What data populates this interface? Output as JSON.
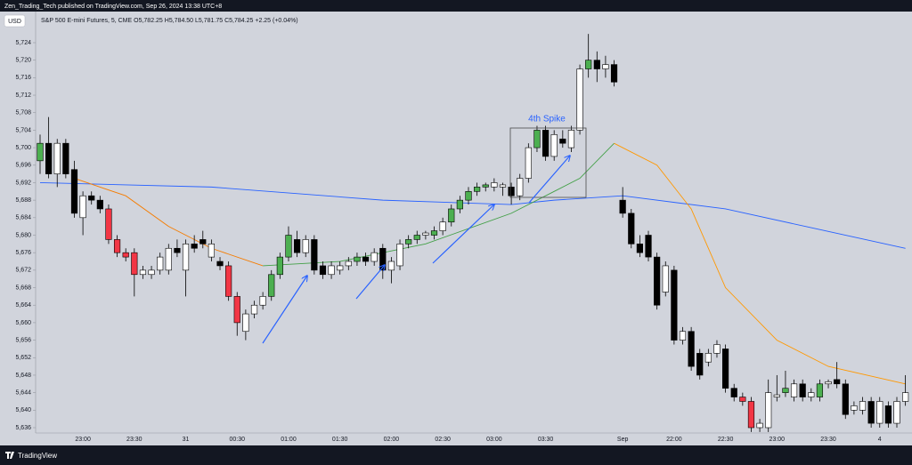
{
  "header": {
    "publisher": "Zen_Trading_Tech published on TradingView.com, Sep 26, 2024 13:38 UTC+8"
  },
  "chart_data": {
    "type": "candlestick",
    "currency": "USD",
    "symbol_line": "S&P 500 E-mini Futures, 5, CME  O5,782.25 H5,784.50 L5,781.75 C5,784.25 +2.25 (+0.04%)",
    "annotation": "4th Spike",
    "annotation_color": "#2962ff",
    "categories": [
      null,
      null,
      null,
      null,
      null,
      "23:00",
      null,
      null,
      null,
      null,
      null,
      "23:30",
      null,
      null,
      null,
      null,
      null,
      "31",
      null,
      null,
      null,
      null,
      null,
      "00:30",
      null,
      null,
      null,
      null,
      null,
      "01:00",
      null,
      null,
      null,
      null,
      null,
      "01:30",
      null,
      null,
      null,
      null,
      null,
      "02:00",
      null,
      null,
      null,
      null,
      null,
      "02:30",
      null,
      null,
      null,
      null,
      null,
      "03:00",
      null,
      null,
      null,
      null,
      null,
      "03:30",
      null,
      null,
      null,
      null,
      null,
      null,
      null,
      null,
      "Sep",
      null,
      null,
      null,
      null,
      null,
      "22:00",
      null,
      null,
      null,
      null,
      null,
      "22:30",
      null,
      null,
      null,
      null,
      null,
      "23:00",
      null,
      null,
      null,
      null,
      null,
      "23:30",
      null,
      null,
      null,
      null,
      null,
      "4",
      null,
      null,
      null
    ],
    "open": [
      5697,
      5701,
      5694,
      5701,
      5695,
      5684,
      5689,
      5688,
      5686,
      5679,
      5676,
      5676,
      5671,
      5671,
      5672,
      5672,
      5677,
      5672,
      5678,
      5679,
      5675,
      5674,
      5673,
      5666,
      5658,
      5662,
      5664,
      5666,
      5671,
      5675,
      5679,
      5676,
      5679,
      5673,
      5671,
      5672,
      5673,
      5674,
      5675,
      5674,
      5677,
      5672,
      5673,
      5678,
      5679,
      5680,
      5680,
      5681,
      5683,
      5686,
      5688,
      5690,
      5691,
      5691,
      5691,
      5691,
      5689,
      5693,
      5700,
      5704,
      5698,
      5702,
      5700,
      5704,
      5718,
      5720,
      5718,
      5719,
      5688,
      5685,
      5678,
      5680,
      5675,
      5667,
      5672,
      5656,
      5658,
      5653,
      5651,
      5653,
      5654,
      5645,
      5643,
      5642,
      5636,
      5636,
      5643,
      5644,
      5643,
      5646,
      5643,
      5643,
      5646,
      5647,
      5646,
      5640,
      5640,
      5642,
      5637,
      5641,
      5637,
      5642
    ],
    "high": [
      5703,
      5707,
      5702,
      5702,
      5697,
      5690,
      5690,
      5689,
      5687,
      5680,
      5677,
      5677,
      5673,
      5673,
      5676,
      5678,
      5679,
      5679,
      5680,
      5681,
      5679,
      5675,
      5674,
      5667,
      5663,
      5665,
      5667,
      5672,
      5676,
      5682,
      5681,
      5680,
      5680,
      5674,
      5674,
      5674,
      5675,
      5676,
      5676,
      5677,
      5678,
      5675,
      5679,
      5680,
      5681,
      5681,
      5682,
      5684,
      5687,
      5689,
      5691,
      5692,
      5692,
      5693,
      5692,
      5692,
      5694,
      5701,
      5705,
      5705,
      5704,
      5704,
      5705,
      5719,
      5726,
      5722,
      5721,
      5720,
      5691,
      5686,
      5680,
      5681,
      5676,
      5674,
      5673,
      5659,
      5659,
      5654,
      5654,
      5656,
      5655,
      5646,
      5644,
      5643,
      5638,
      5647,
      5648,
      5649,
      5647,
      5647,
      5645,
      5647,
      5647,
      5651,
      5647,
      5642,
      5643,
      5643,
      5643,
      5642,
      5643,
      5648
    ],
    "low": [
      5694,
      5693,
      5691,
      5693,
      5684,
      5680,
      5687,
      5685,
      5678,
      5675,
      5674,
      5666,
      5670,
      5670,
      5671,
      5671,
      5675,
      5666,
      5676,
      5677,
      5674,
      5672,
      5665,
      5657,
      5656,
      5661,
      5663,
      5665,
      5670,
      5674,
      5675,
      5675,
      5671,
      5670,
      5670,
      5671,
      5672,
      5673,
      5673,
      5673,
      5670,
      5669,
      5672,
      5677,
      5678,
      5679,
      5679,
      5680,
      5682,
      5685,
      5687,
      5689,
      5690,
      5690,
      5689,
      5687,
      5688,
      5692,
      5699,
      5697,
      5697,
      5700,
      5699,
      5703,
      5716,
      5715,
      5716,
      5714,
      5684,
      5677,
      5675,
      5674,
      5663,
      5666,
      5655,
      5655,
      5649,
      5647,
      5650,
      5652,
      5644,
      5642,
      5641,
      5635,
      5635,
      5635,
      5642,
      5643,
      5642,
      5642,
      5642,
      5642,
      5645,
      5645,
      5638,
      5639,
      5639,
      5636,
      5636,
      5636,
      5636,
      5641
    ],
    "close": [
      5701,
      5694,
      5701,
      5694,
      5685,
      5689,
      5688,
      5686,
      5679,
      5676,
      5675,
      5671,
      5672,
      5672,
      5675,
      5677,
      5676,
      5678,
      5677,
      5678,
      5678,
      5673,
      5666,
      5660,
      5662,
      5664,
      5666,
      5671,
      5675,
      5680,
      5676,
      5679,
      5672,
      5671,
      5673,
      5673,
      5674,
      5675,
      5674,
      5676,
      5672,
      5674,
      5678,
      5679,
      5680,
      5680.5,
      5681,
      5683,
      5686,
      5688,
      5690,
      5691,
      5691.5,
      5692,
      5691.5,
      5689,
      5693,
      5700,
      5704,
      5698,
      5703,
      5701,
      5704,
      5718,
      5720,
      5718,
      5719,
      5715,
      5685,
      5678,
      5676,
      5675,
      5664,
      5673,
      5656,
      5658,
      5650,
      5648,
      5653,
      5655,
      5645,
      5643,
      5642,
      5636,
      5637,
      5644,
      5643.5,
      5645,
      5646,
      5643,
      5644,
      5646,
      5646.5,
      5646,
      5639,
      5641,
      5642,
      5637,
      5642,
      5637,
      5642,
      5644
    ],
    "candle_colors": [
      "#4caf50",
      "#000000",
      "#ffffff",
      "#000000",
      "#000000",
      "#ffffff",
      "#000000",
      "#000000",
      "#f23645",
      "#f23645",
      "#f23645",
      "#f23645",
      "#ffffff",
      "#ffffff",
      "#ffffff",
      "#ffffff",
      "#000000",
      "#ffffff",
      "#000000",
      "#000000",
      "#ffffff",
      "#000000",
      "#f23645",
      "#f23645",
      "#ffffff",
      "#ffffff",
      "#ffffff",
      "#4caf50",
      "#4caf50",
      "#4caf50",
      "#000000",
      "#ffffff",
      "#000000",
      "#000000",
      "#ffffff",
      "#ffffff",
      "#ffffff",
      "#4caf50",
      "#000000",
      "#ffffff",
      "#000000",
      "#ffffff",
      "#ffffff",
      "#4caf50",
      "#4caf50",
      "#ffffff",
      "#4caf50",
      "#ffffff",
      "#4caf50",
      "#4caf50",
      "#4caf50",
      "#4caf50",
      "#4caf50",
      "#ffffff",
      "#ffffff",
      "#000000",
      "#ffffff",
      "#ffffff",
      "#4caf50",
      "#000000",
      "#ffffff",
      "#000000",
      "#ffffff",
      "#ffffff",
      "#4caf50",
      "#000000",
      "#ffffff",
      "#000000",
      "#000000",
      "#000000",
      "#000000",
      "#000000",
      "#000000",
      "#ffffff",
      "#000000",
      "#ffffff",
      "#000000",
      "#000000",
      "#ffffff",
      "#ffffff",
      "#000000",
      "#000000",
      "#f23645",
      "#f23645",
      "#ffffff",
      "#ffffff",
      "#ffffff",
      "#4caf50",
      "#ffffff",
      "#000000",
      "#ffffff",
      "#4caf50",
      "#ffffff",
      "#000000",
      "#000000",
      "#ffffff",
      "#ffffff",
      "#000000",
      "#ffffff",
      "#000000",
      "#ffffff",
      "#ffffff"
    ],
    "lines": [
      {
        "color": "#2962ff",
        "x": [
          0,
          20,
          40,
          55,
          60,
          68,
          80,
          101
        ],
        "values": [
          5692,
          5691,
          5688,
          5687,
          5688,
          5689,
          5686,
          5677
        ]
      },
      {
        "color": "#f57c00",
        "x": [
          4,
          10,
          15,
          20,
          26
        ],
        "values": [
          5693,
          5689,
          5682,
          5677,
          5673
        ]
      },
      {
        "color": "#43a047",
        "x": [
          26,
          35,
          45,
          55,
          60,
          63,
          67
        ],
        "values": [
          5673,
          5674,
          5678,
          5685,
          5690,
          5693,
          5701
        ]
      },
      {
        "color": "#ff9800",
        "x": [
          67,
          72,
          76,
          80,
          86,
          92,
          101
        ],
        "values": [
          5701,
          5696,
          5686,
          5668,
          5656,
          5650,
          5646
        ]
      }
    ],
    "ylim": [
      5634.78,
      5730.91
    ],
    "yticks": [
      {
        "value": 5636,
        "label": "5,636"
      },
      {
        "value": 5640,
        "label": "5,640"
      },
      {
        "value": 5644,
        "label": "5,644"
      },
      {
        "value": 5648,
        "label": "5,648"
      },
      {
        "value": 5652,
        "label": "5,652"
      },
      {
        "value": 5656,
        "label": "5,656"
      },
      {
        "value": 5660,
        "label": "5,660"
      },
      {
        "value": 5664,
        "label": "5,664"
      },
      {
        "value": 5668,
        "label": "5,668"
      },
      {
        "value": 5672,
        "label": "5,672"
      },
      {
        "value": 5676,
        "label": "5,676"
      },
      {
        "value": 5680,
        "label": "5,680"
      },
      {
        "value": 5684,
        "label": "5,684"
      },
      {
        "value": 5688,
        "label": "5,688"
      },
      {
        "value": 5692,
        "label": "5,692"
      },
      {
        "value": 5696,
        "label": "5,696"
      },
      {
        "value": 5700,
        "label": "5,700"
      },
      {
        "value": 5704,
        "label": "5,704"
      },
      {
        "value": 5708,
        "label": "5,708"
      },
      {
        "value": 5712,
        "label": "5,712"
      },
      {
        "value": 5716,
        "label": "5,716"
      },
      {
        "value": 5720,
        "label": "5,720"
      },
      {
        "value": 5724,
        "label": "5,724"
      }
    ]
  },
  "footer": {
    "brand": "TradingView"
  }
}
